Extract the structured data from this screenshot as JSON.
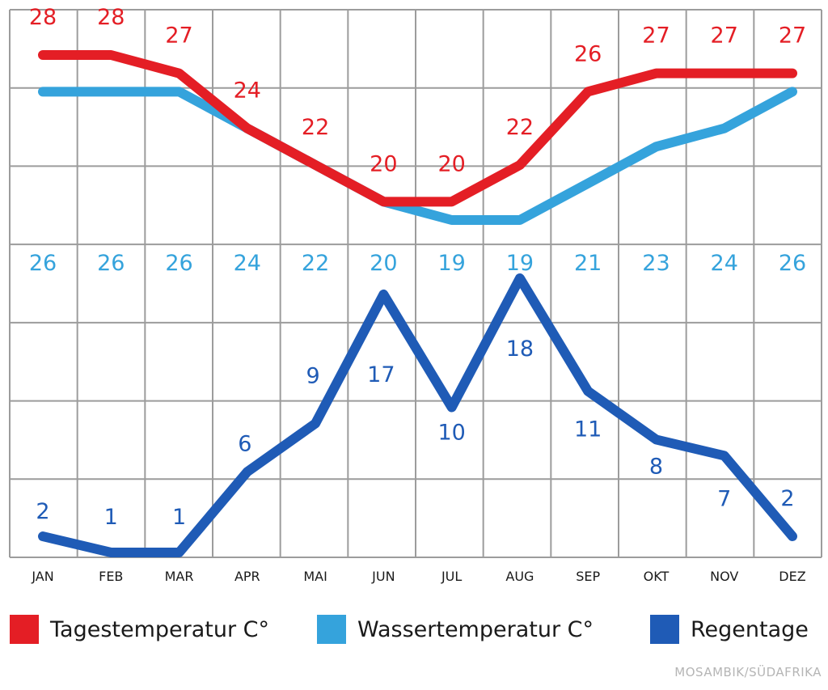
{
  "chart_data": {
    "type": "line",
    "categories": [
      "JAN",
      "FEB",
      "MAR",
      "APR",
      "MAI",
      "JUN",
      "JUL",
      "AUG",
      "SEP",
      "OKT",
      "NOV",
      "DEZ"
    ],
    "series": [
      {
        "name": "Tagestemperatur C°",
        "color": "#e41e25",
        "values": [
          28,
          28,
          27,
          24,
          22,
          20,
          20,
          22,
          26,
          27,
          27,
          27
        ],
        "labels": [
          "28",
          "28",
          "27",
          "24",
          "22",
          "20",
          "20",
          "22",
          "26",
          "27",
          "27",
          "27"
        ]
      },
      {
        "name": "Wassertemperatur C°",
        "color": "#35a3dc",
        "values": [
          26,
          26,
          26,
          24,
          22,
          20,
          19,
          19,
          21,
          23,
          24,
          26
        ],
        "labels": [
          "26",
          "26",
          "26",
          "24",
          "22",
          "20",
          "19",
          "19",
          "21",
          "23",
          "24",
          "26"
        ]
      },
      {
        "name": "Regentage",
        "color": "#1f5bb6",
        "values": [
          2,
          1,
          1,
          6,
          9,
          17,
          10,
          18,
          11,
          8,
          7,
          2
        ],
        "labels": [
          "2",
          "1",
          "1",
          "6",
          "9",
          "17",
          "10",
          "18",
          "11",
          "8",
          "7",
          "2"
        ]
      }
    ],
    "grid": true
  },
  "legend": {
    "items": [
      {
        "label": "Tagestemperatur C°",
        "color": "#e41e25"
      },
      {
        "label": "Wassertemperatur C°",
        "color": "#35a3dc"
      },
      {
        "label": "Regentage",
        "color": "#1f5bb6"
      }
    ]
  },
  "credit": "MOSAMBIK/SÜDAFRIKA"
}
